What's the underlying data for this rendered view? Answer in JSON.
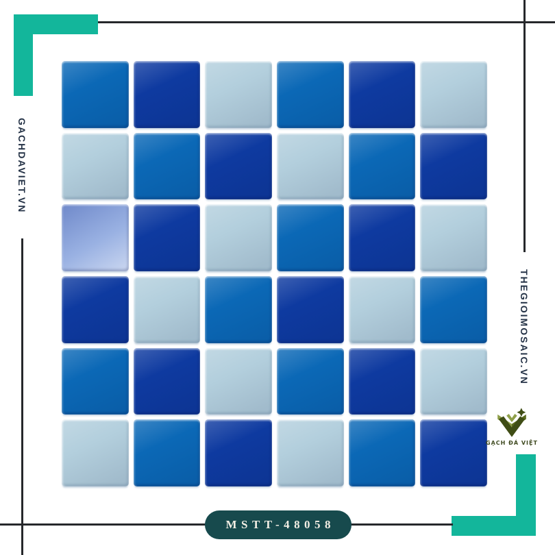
{
  "branding": {
    "left_site": "GACHDAVIET.VN",
    "right_site": "THEGIOIMOSAIC.VN",
    "logo_text": "GẠCH ĐÁ VIỆT"
  },
  "product": {
    "code": "MSTT-48058",
    "description": "6x6 blue glass mosaic tile sheet"
  },
  "colors": {
    "teal_accent": "#13b69b",
    "line_dark": "#26282b",
    "text_navy": "#233145",
    "badge_bg": "#174a4d",
    "badge_text": "#f2eee4",
    "logo_olive_dark": "#3f4d15",
    "logo_olive": "#5b6b1e",
    "logo_olive_light": "#8fa04a",
    "logo_text_color": "#3f4a20",
    "tile_medium": "#0b68b6",
    "tile_dark": "#0e3aa0",
    "tile_light": "#b3cfdd",
    "tile_periwinkle": "#83a0dc",
    "grout": "#ffffff"
  },
  "mosaic": {
    "rows": 6,
    "cols": 6,
    "legend": {
      "M": "medium-blue",
      "D": "dark-royal-blue",
      "L": "light-blue",
      "P": "periwinkle-gloss"
    },
    "pattern": [
      [
        "M",
        "D",
        "L",
        "M",
        "D",
        "L"
      ],
      [
        "L",
        "M",
        "D",
        "L",
        "M",
        "D"
      ],
      [
        "P",
        "D",
        "L",
        "M",
        "D",
        "L"
      ],
      [
        "D",
        "L",
        "M",
        "D",
        "L",
        "M"
      ],
      [
        "M",
        "D",
        "L",
        "M",
        "D",
        "L"
      ],
      [
        "L",
        "M",
        "D",
        "L",
        "M",
        "D"
      ]
    ]
  }
}
